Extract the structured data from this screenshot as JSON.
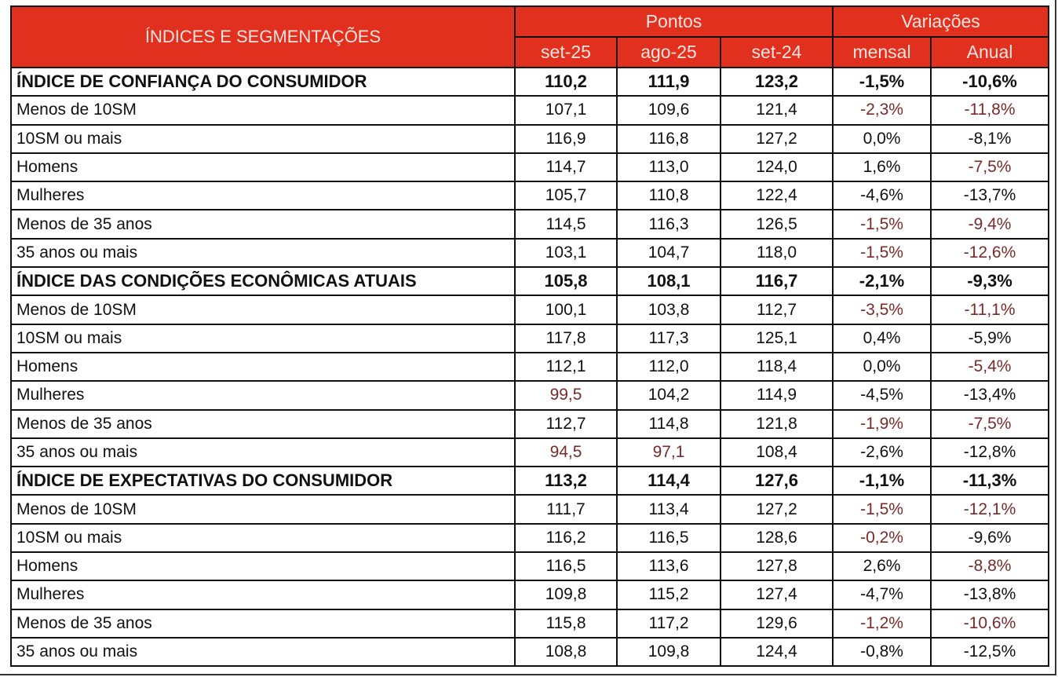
{
  "header": {
    "label": "ÍNDICES E SEGMENTAÇÕES",
    "group_points": "Pontos",
    "group_variations": "Variações",
    "columns": [
      "set-25",
      "ago-25",
      "set-24",
      "mensal",
      "Anual"
    ]
  },
  "colors": {
    "header_bg": "#e2301f",
    "header_text": "#fbe3df",
    "highlight_text": "#7a2a2a"
  },
  "rows": [
    {
      "label": "ÍNDICE DE CONFIANÇA DO CONSUMIDOR",
      "index": true,
      "values": [
        "110,2",
        "111,9",
        "123,2",
        "-1,5%",
        "-10,6%"
      ],
      "red": []
    },
    {
      "label": "Menos de 10SM",
      "values": [
        "107,1",
        "109,6",
        "121,4",
        "-2,3%",
        "-11,8%"
      ],
      "red": [
        3,
        4
      ]
    },
    {
      "label": "10SM ou mais",
      "values": [
        "116,9",
        "116,8",
        "127,2",
        "0,0%",
        "-8,1%"
      ],
      "red": []
    },
    {
      "label": "Homens",
      "values": [
        "114,7",
        "113,0",
        "124,0",
        "1,6%",
        "-7,5%"
      ],
      "red": [
        4
      ]
    },
    {
      "label": "Mulheres",
      "values": [
        "105,7",
        "110,8",
        "122,4",
        "-4,6%",
        "-13,7%"
      ],
      "red": []
    },
    {
      "label": "Menos de 35 anos",
      "values": [
        "114,5",
        "116,3",
        "126,5",
        "-1,5%",
        "-9,4%"
      ],
      "red": [
        3,
        4
      ]
    },
    {
      "label": "35 anos ou mais",
      "values": [
        "103,1",
        "104,7",
        "118,0",
        "-1,5%",
        "-12,6%"
      ],
      "red": [
        3,
        4
      ]
    },
    {
      "label": "ÍNDICE DAS CONDIÇÕES ECONÔMICAS ATUAIS",
      "index": true,
      "values": [
        "105,8",
        "108,1",
        "116,7",
        "-2,1%",
        "-9,3%"
      ],
      "red": []
    },
    {
      "label": "Menos de 10SM",
      "values": [
        "100,1",
        "103,8",
        "112,7",
        "-3,5%",
        "-11,1%"
      ],
      "red": [
        3,
        4
      ]
    },
    {
      "label": "10SM ou mais",
      "values": [
        "117,8",
        "117,3",
        "125,1",
        "0,4%",
        "-5,9%"
      ],
      "red": []
    },
    {
      "label": "Homens",
      "values": [
        "112,1",
        "112,0",
        "118,4",
        "0,0%",
        "-5,4%"
      ],
      "red": [
        4
      ]
    },
    {
      "label": "Mulheres",
      "values": [
        "99,5",
        "104,2",
        "114,9",
        "-4,5%",
        "-13,4%"
      ],
      "red": [
        0
      ]
    },
    {
      "label": "Menos de 35 anos",
      "values": [
        "112,7",
        "114,8",
        "121,8",
        "-1,9%",
        "-7,5%"
      ],
      "red": [
        3,
        4
      ]
    },
    {
      "label": "35 anos ou mais",
      "values": [
        "94,5",
        "97,1",
        "108,4",
        "-2,6%",
        "-12,8%"
      ],
      "red": [
        0,
        1
      ]
    },
    {
      "label": "ÍNDICE DE EXPECTATIVAS DO CONSUMIDOR",
      "index": true,
      "values": [
        "113,2",
        "114,4",
        "127,6",
        "-1,1%",
        "-11,3%"
      ],
      "red": []
    },
    {
      "label": "Menos de 10SM",
      "values": [
        "111,7",
        "113,4",
        "127,2",
        "-1,5%",
        "-12,1%"
      ],
      "red": [
        3,
        4
      ]
    },
    {
      "label": "10SM ou mais",
      "values": [
        "116,2",
        "116,5",
        "128,6",
        "-0,2%",
        "-9,6%"
      ],
      "red": [
        3
      ]
    },
    {
      "label": "Homens",
      "values": [
        "116,5",
        "113,6",
        "127,8",
        "2,6%",
        "-8,8%"
      ],
      "red": [
        4
      ]
    },
    {
      "label": "Mulheres",
      "values": [
        "109,8",
        "115,2",
        "127,4",
        "-4,7%",
        "-13,8%"
      ],
      "red": []
    },
    {
      "label": "Menos de 35 anos",
      "values": [
        "115,8",
        "117,2",
        "129,6",
        "-1,2%",
        "-10,6%"
      ],
      "red": [
        3,
        4
      ]
    },
    {
      "label": "35 anos ou mais",
      "values": [
        "108,8",
        "109,8",
        "124,4",
        "-0,8%",
        "-12,5%"
      ],
      "red": []
    }
  ]
}
